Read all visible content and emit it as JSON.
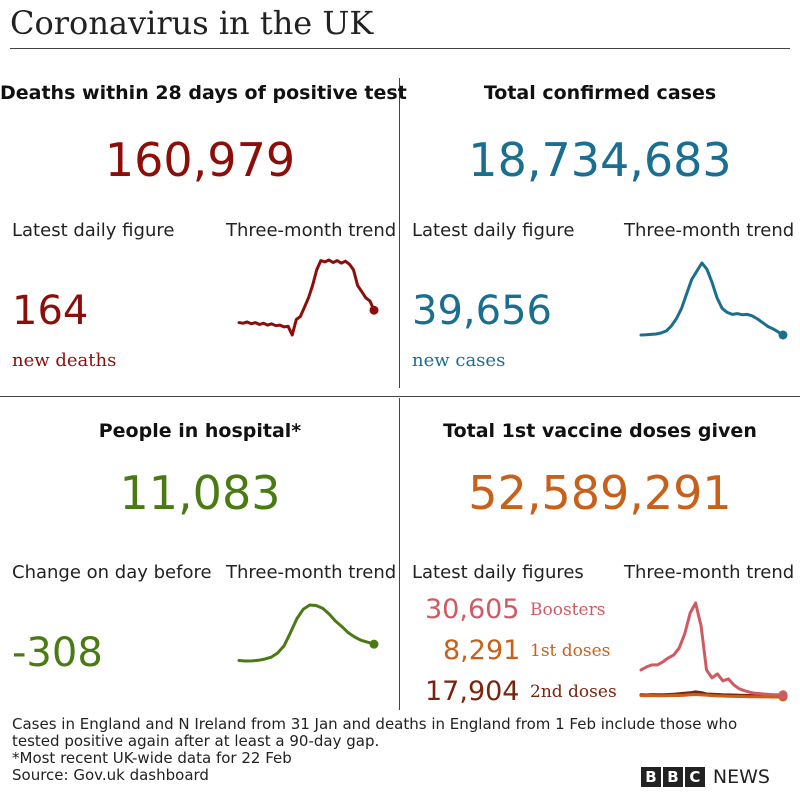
{
  "title": "Coronavirus in the UK",
  "colors": {
    "deaths": "#8b0e0a",
    "cases": "#1a6f91",
    "hospital": "#4a7a12",
    "vaccines": "#c9601a",
    "boosters": "#d05a62",
    "first": "#c9601a",
    "second": "#7a2410"
  },
  "deaths": {
    "title": "Deaths within 28 days of positive test",
    "total": "160,979",
    "latest_label": "Latest daily figure",
    "trend_label": "Three-month trend",
    "latest_value": "164",
    "latest_unit": "new deaths"
  },
  "cases": {
    "title": "Total confirmed cases",
    "total": "18,734,683",
    "latest_label": "Latest daily figure",
    "trend_label": "Three-month trend",
    "latest_value": "39,656",
    "latest_unit": "new cases"
  },
  "hospital": {
    "title": "People in hospital*",
    "total": "11,083",
    "latest_label": "Change on day before",
    "trend_label": "Three-month trend",
    "latest_value": "-308"
  },
  "vaccines": {
    "title": "Total 1st vaccine doses given",
    "total": "52,589,291",
    "latest_label": "Latest daily figures",
    "trend_label": "Three-month trend",
    "boosters_value": "30,605",
    "boosters_label": "Boosters",
    "first_value": "8,291",
    "first_label": "1st doses",
    "second_value": "17,904",
    "second_label": "2nd doses"
  },
  "footnotes": {
    "line1": "Cases in England and N Ireland from 31 Jan and deaths in England from 1 Feb include those who",
    "line2": "tested positive again after at least a 90-day gap.",
    "line3": "*Most recent UK-wide data for 22 Feb",
    "line4": "Source: Gov.uk dashboard"
  },
  "brand": {
    "box1": "B",
    "box2": "B",
    "box3": "C",
    "news": "NEWS"
  },
  "chart_data": [
    {
      "type": "line",
      "series": [
        {
          "name": "Deaths",
          "values": [
            90,
            89,
            91,
            88,
            90,
            87,
            89,
            86,
            88,
            85,
            86,
            83,
            84,
            70,
            95,
            100,
            115,
            130,
            150,
            175,
            190,
            188,
            191,
            187,
            190,
            186,
            189,
            184,
            175,
            150,
            140,
            130,
            125,
            110
          ]
        }
      ]
    },
    {
      "type": "line",
      "series": [
        {
          "name": "Cases",
          "values": [
            40000,
            40500,
            41500,
            42500,
            45000,
            50000,
            62000,
            80000,
            105000,
            140000,
            175000,
            195000,
            215000,
            200000,
            168000,
            130000,
            105000,
            95000,
            90000,
            92000,
            89000,
            90000,
            86000,
            79000,
            70000,
            61000,
            55000,
            48000,
            40000
          ]
        }
      ]
    },
    {
      "type": "line",
      "series": [
        {
          "name": "Hospital",
          "values": [
            7600,
            7500,
            7520,
            7650,
            7900,
            8300,
            9200,
            10700,
            13500,
            16500,
            18500,
            19400,
            19300,
            18700,
            17500,
            16000,
            14800,
            13500,
            12600,
            11900,
            11500,
            11083
          ]
        }
      ]
    },
    {
      "type": "line",
      "series": [
        {
          "name": "Boosters",
          "values": [
            280000,
            310000,
            330000,
            330000,
            360000,
            400000,
            430000,
            500000,
            640000,
            850000,
            950000,
            720000,
            280000,
            200000,
            240000,
            170000,
            190000,
            130000,
            90000,
            70000,
            55000,
            45000,
            40000,
            36000,
            32000,
            31000,
            30605
          ]
        },
        {
          "name": "1st doses",
          "values": [
            22000,
            21000,
            23000,
            20000,
            21000,
            22000,
            24000,
            23000,
            25000,
            30000,
            33000,
            29000,
            27000,
            22000,
            19000,
            18000,
            16000,
            14000,
            13000,
            12000,
            11000,
            10000,
            9500,
            9000,
            8700,
            8400,
            8291
          ]
        },
        {
          "name": "2nd doses",
          "values": [
            30000,
            28000,
            32000,
            30000,
            31000,
            33000,
            36000,
            40000,
            45000,
            50000,
            60000,
            52000,
            38000,
            35000,
            33000,
            30000,
            29000,
            28000,
            26000,
            24000,
            23000,
            21000,
            20000,
            19500,
            19000,
            18500,
            17904
          ]
        }
      ]
    }
  ]
}
